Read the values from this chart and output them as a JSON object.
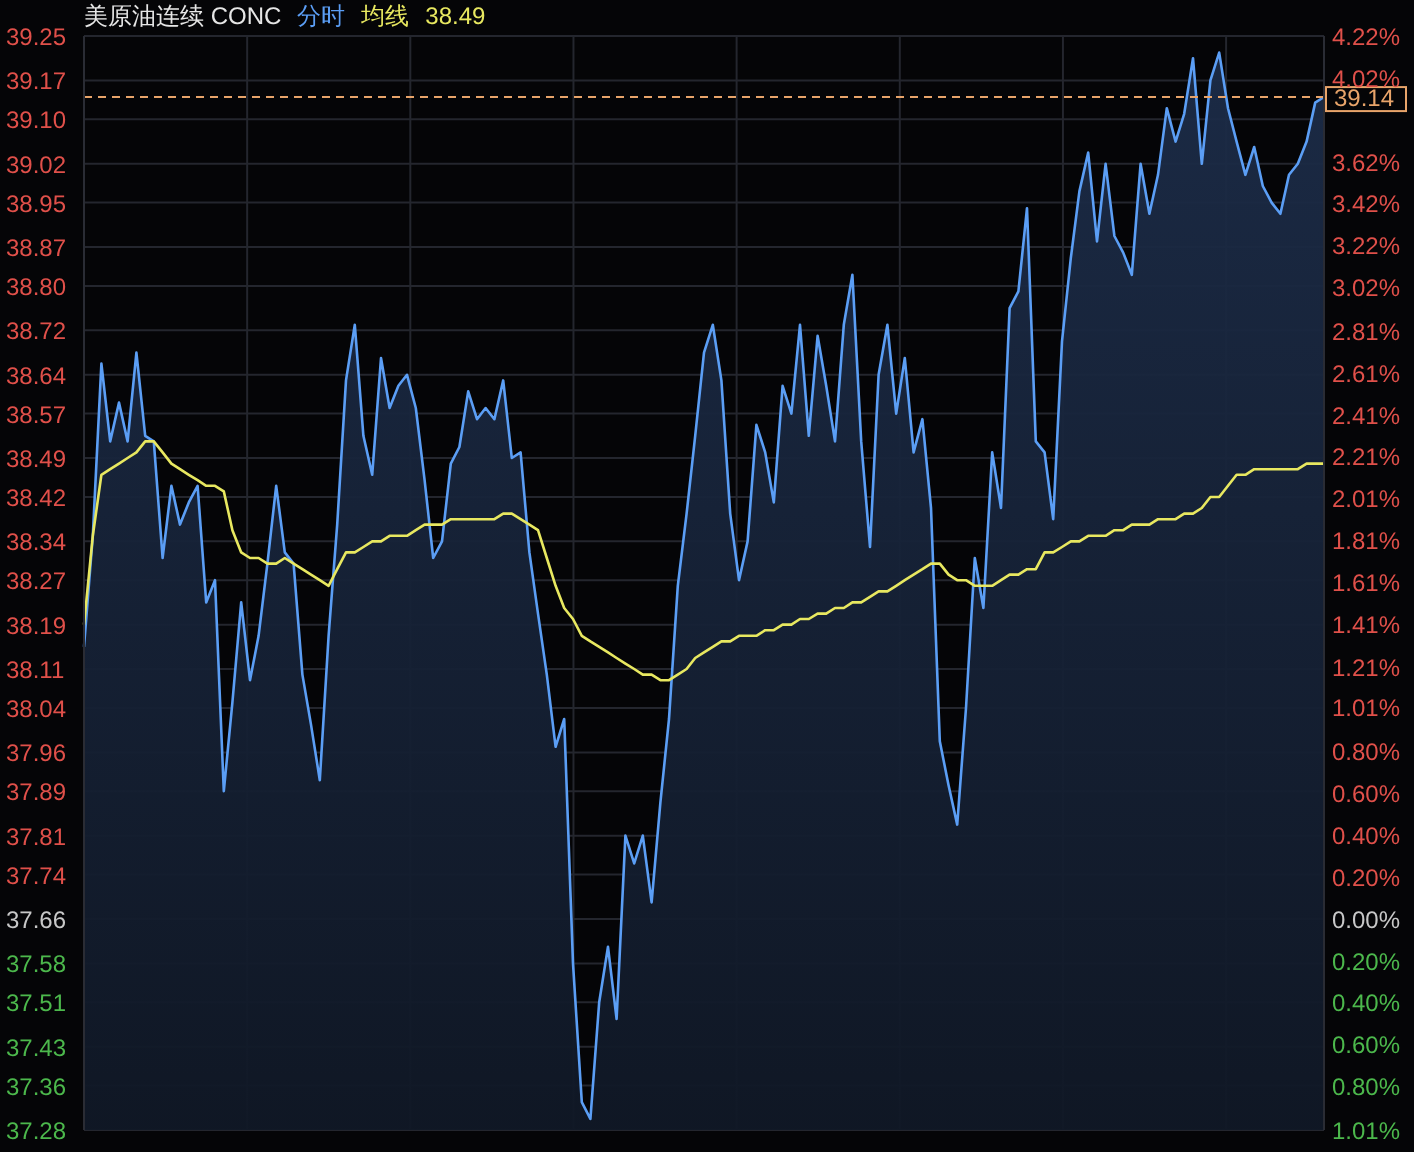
{
  "chart_data": {
    "type": "line",
    "title": "美原油连续 CONC",
    "annotations": [
      "38.49"
    ],
    "tick_labels": "y",
    "ylim": [
      37.28,
      39.25
    ],
    "categories": [
      null,
      null,
      null,
      null,
      null,
      null,
      null,
      null,
      null,
      null,
      null,
      null,
      null,
      null,
      null,
      null,
      null,
      null,
      null,
      null,
      null,
      null,
      null,
      null,
      null,
      null,
      null,
      null,
      null,
      null,
      null,
      null,
      null,
      null,
      null,
      null,
      null,
      null,
      null,
      null,
      null,
      null,
      null,
      null,
      null,
      null,
      null,
      null,
      null,
      null,
      null,
      null,
      null,
      null,
      null,
      null,
      null,
      null,
      null,
      null,
      null,
      null,
      null,
      null,
      null,
      null,
      null,
      null,
      null,
      null,
      null,
      null,
      null,
      null,
      null,
      null,
      null,
      null,
      null,
      null,
      null,
      null,
      null,
      null,
      null,
      null,
      null,
      null,
      null,
      null,
      null,
      null,
      null,
      null,
      null,
      null,
      null,
      null,
      null,
      null,
      null,
      null,
      null,
      null,
      null,
      null,
      null,
      null,
      null,
      null,
      null,
      null,
      null,
      null,
      null,
      null,
      null,
      null,
      null,
      null,
      null,
      null,
      null,
      null,
      null,
      null,
      null,
      null,
      null,
      null,
      null,
      null,
      null,
      null,
      null,
      null,
      null,
      null,
      null,
      null,
      null,
      null,
      null
    ],
    "yticks": [
      39.25,
      39.17,
      {
        "value": 39.1,
        "label": "39.10"
      },
      39.02,
      38.95,
      38.87,
      {
        "value": 38.8,
        "label": "38.80"
      },
      38.72,
      38.64,
      38.57,
      38.49,
      38.42,
      38.34,
      38.27,
      38.19,
      38.11,
      38.04,
      37.96,
      37.89,
      37.81,
      37.74,
      37.66,
      37.58,
      37.51,
      37.43,
      37.36,
      37.28
    ],
    "y2lim": [
      -1.01,
      4.22
    ],
    "y2ticks": [
      {
        "value": 4.22,
        "label": "4.22%"
      },
      {
        "value": 4.02,
        "label": "4.02%"
      },
      {
        "value": 3.82,
        "label": null
      },
      {
        "value": 3.62,
        "label": "3.62%"
      },
      {
        "value": 3.42,
        "label": "3.42%"
      },
      {
        "value": 3.22,
        "label": "3.22%"
      },
      {
        "value": 3.02,
        "label": "3.02%"
      },
      {
        "value": 2.81,
        "label": "2.81%"
      },
      {
        "value": 2.61,
        "label": "2.61%"
      },
      {
        "value": 2.41,
        "label": "2.41%"
      },
      {
        "value": 2.21,
        "label": "2.21%"
      },
      {
        "value": 2.01,
        "label": "2.01%"
      },
      {
        "value": 1.81,
        "label": "1.81%"
      },
      {
        "value": 1.61,
        "label": "1.61%"
      },
      {
        "value": 1.41,
        "label": "1.41%"
      },
      {
        "value": 1.205,
        "label": "1.21%"
      },
      {
        "value": 1.01,
        "label": "1.01%"
      },
      {
        "value": 0.8,
        "label": "0.80%"
      },
      {
        "value": 0.6,
        "label": "0.60%"
      },
      {
        "value": 0.4,
        "label": "0.40%"
      },
      {
        "value": 0.2,
        "label": "0.20%"
      },
      {
        "value": 0,
        "label": "0.00%"
      },
      {
        "value": -0.2,
        "label": "0.20%"
      },
      {
        "value": -0.4,
        "label": "0.40%"
      },
      {
        "value": -0.6,
        "label": "0.60%"
      },
      {
        "value": -0.8,
        "label": "0.80%"
      },
      {
        "value": -1.01,
        "label": "1.01%"
      }
    ],
    "grid": true,
    "ref_lines": [
      {
        "axis": "y",
        "value": 39.14,
        "label": "39.14",
        "color": "#e8a46a",
        "line_style": "dashed"
      }
    ],
    "series": [
      {
        "name": "分时",
        "type": "area",
        "color": "#5b9ef5",
        "values": [
          38.15,
          38.35,
          38.66,
          38.52,
          38.59,
          38.52,
          38.68,
          38.53,
          38.52,
          38.31,
          38.44,
          38.37,
          38.41,
          38.44,
          38.23,
          38.27,
          37.89,
          38.05,
          38.23,
          38.09,
          38.17,
          38.3,
          38.44,
          38.32,
          38.3,
          38.1,
          38.01,
          37.91,
          38.17,
          38.37,
          38.63,
          38.73,
          38.53,
          38.46,
          38.67,
          38.58,
          38.62,
          38.64,
          38.58,
          38.45,
          38.31,
          38.34,
          38.48,
          38.51,
          38.61,
          38.56,
          38.58,
          38.56,
          38.63,
          38.49,
          38.5,
          38.32,
          38.21,
          38.1,
          37.97,
          38.02,
          37.58,
          37.33,
          37.3,
          37.51,
          37.61,
          37.48,
          37.81,
          37.76,
          37.81,
          37.69,
          37.87,
          38.02,
          38.26,
          38.39,
          38.53,
          38.68,
          38.73,
          38.63,
          38.39,
          38.27,
          38.34,
          38.55,
          38.5,
          38.41,
          38.62,
          38.57,
          38.73,
          38.53,
          38.71,
          38.62,
          38.52,
          38.73,
          38.82,
          38.52,
          38.33,
          38.64,
          38.73,
          38.57,
          38.67,
          38.5,
          38.56,
          38.4,
          37.98,
          37.9,
          37.83,
          38.04,
          38.31,
          38.22,
          38.5,
          38.4,
          38.76,
          38.79,
          38.94,
          38.52,
          38.5,
          38.38,
          38.7,
          38.85,
          38.97,
          39.04,
          38.88,
          39.02,
          38.89,
          38.86,
          38.82,
          39.02,
          38.93,
          39.0,
          39.12,
          39.06,
          39.11,
          39.21,
          39.02,
          39.17,
          39.22,
          39.12,
          39.06,
          39.0,
          39.05,
          38.98,
          38.95,
          38.93,
          39.0,
          39.02,
          39.06,
          39.13,
          39.14
        ]
      },
      {
        "name": "均线",
        "type": "line",
        "color": "#e8e860",
        "values": [
          38.19,
          38.35,
          38.46,
          38.47,
          38.48,
          38.49,
          38.5,
          38.52,
          38.52,
          38.5,
          38.48,
          38.47,
          38.46,
          38.45,
          38.44,
          38.44,
          38.43,
          38.36,
          38.32,
          38.31,
          38.31,
          38.3,
          38.3,
          38.31,
          38.3,
          38.29,
          38.28,
          38.27,
          38.26,
          38.29,
          38.32,
          38.32,
          38.33,
          38.34,
          38.34,
          38.35,
          38.35,
          38.35,
          38.36,
          38.37,
          38.37,
          38.37,
          38.38,
          38.38,
          38.38,
          38.38,
          38.38,
          38.38,
          38.39,
          38.39,
          38.38,
          38.37,
          38.36,
          38.31,
          38.26,
          38.22,
          38.2,
          38.17,
          38.16,
          38.15,
          38.14,
          38.13,
          38.12,
          38.11,
          38.1,
          38.1,
          38.09,
          38.09,
          38.1,
          38.11,
          38.13,
          38.14,
          38.15,
          38.16,
          38.16,
          38.17,
          38.17,
          38.17,
          38.18,
          38.18,
          38.19,
          38.19,
          38.2,
          38.2,
          38.21,
          38.21,
          38.22,
          38.22,
          38.23,
          38.23,
          38.24,
          38.25,
          38.25,
          38.26,
          38.27,
          38.28,
          38.29,
          38.3,
          38.3,
          38.28,
          38.27,
          38.27,
          38.26,
          38.26,
          38.26,
          38.27,
          38.28,
          38.28,
          38.29,
          38.29,
          38.32,
          38.32,
          38.33,
          38.34,
          38.34,
          38.35,
          38.35,
          38.35,
          38.36,
          38.36,
          38.37,
          38.37,
          38.37,
          38.38,
          38.38,
          38.38,
          38.39,
          38.39,
          38.4,
          38.42,
          38.42,
          38.44,
          38.46,
          38.46,
          38.47,
          38.47,
          38.47,
          38.47,
          38.47,
          38.47,
          38.48,
          38.48,
          38.48
        ]
      }
    ]
  }
}
